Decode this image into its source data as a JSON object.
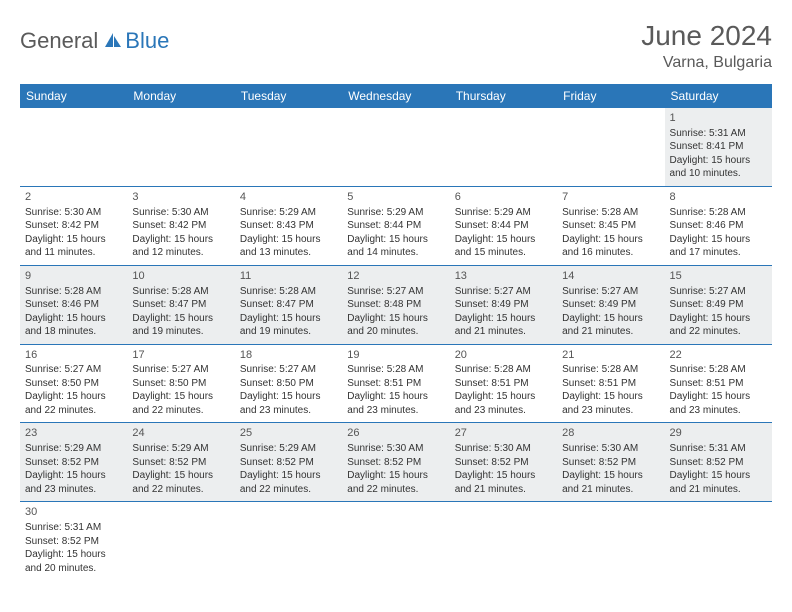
{
  "brand": {
    "part1": "General",
    "part2": "Blue"
  },
  "title": "June 2024",
  "location": "Varna, Bulgaria",
  "colors": {
    "header_bg": "#2a76b8",
    "header_text": "#ffffff",
    "row_alt_bg": "#eceeef",
    "divider": "#2a76b8",
    "title_color": "#5a5a5a"
  },
  "dayHeaders": [
    "Sunday",
    "Monday",
    "Tuesday",
    "Wednesday",
    "Thursday",
    "Friday",
    "Saturday"
  ],
  "weeks": [
    [
      null,
      null,
      null,
      null,
      null,
      null,
      {
        "d": "1",
        "sr": "5:31 AM",
        "ss": "8:41 PM",
        "dl": "15 hours and 10 minutes."
      }
    ],
    [
      {
        "d": "2",
        "sr": "5:30 AM",
        "ss": "8:42 PM",
        "dl": "15 hours and 11 minutes."
      },
      {
        "d": "3",
        "sr": "5:30 AM",
        "ss": "8:42 PM",
        "dl": "15 hours and 12 minutes."
      },
      {
        "d": "4",
        "sr": "5:29 AM",
        "ss": "8:43 PM",
        "dl": "15 hours and 13 minutes."
      },
      {
        "d": "5",
        "sr": "5:29 AM",
        "ss": "8:44 PM",
        "dl": "15 hours and 14 minutes."
      },
      {
        "d": "6",
        "sr": "5:29 AM",
        "ss": "8:44 PM",
        "dl": "15 hours and 15 minutes."
      },
      {
        "d": "7",
        "sr": "5:28 AM",
        "ss": "8:45 PM",
        "dl": "15 hours and 16 minutes."
      },
      {
        "d": "8",
        "sr": "5:28 AM",
        "ss": "8:46 PM",
        "dl": "15 hours and 17 minutes."
      }
    ],
    [
      {
        "d": "9",
        "sr": "5:28 AM",
        "ss": "8:46 PM",
        "dl": "15 hours and 18 minutes."
      },
      {
        "d": "10",
        "sr": "5:28 AM",
        "ss": "8:47 PM",
        "dl": "15 hours and 19 minutes."
      },
      {
        "d": "11",
        "sr": "5:28 AM",
        "ss": "8:47 PM",
        "dl": "15 hours and 19 minutes."
      },
      {
        "d": "12",
        "sr": "5:27 AM",
        "ss": "8:48 PM",
        "dl": "15 hours and 20 minutes."
      },
      {
        "d": "13",
        "sr": "5:27 AM",
        "ss": "8:49 PM",
        "dl": "15 hours and 21 minutes."
      },
      {
        "d": "14",
        "sr": "5:27 AM",
        "ss": "8:49 PM",
        "dl": "15 hours and 21 minutes."
      },
      {
        "d": "15",
        "sr": "5:27 AM",
        "ss": "8:49 PM",
        "dl": "15 hours and 22 minutes."
      }
    ],
    [
      {
        "d": "16",
        "sr": "5:27 AM",
        "ss": "8:50 PM",
        "dl": "15 hours and 22 minutes."
      },
      {
        "d": "17",
        "sr": "5:27 AM",
        "ss": "8:50 PM",
        "dl": "15 hours and 22 minutes."
      },
      {
        "d": "18",
        "sr": "5:27 AM",
        "ss": "8:50 PM",
        "dl": "15 hours and 23 minutes."
      },
      {
        "d": "19",
        "sr": "5:28 AM",
        "ss": "8:51 PM",
        "dl": "15 hours and 23 minutes."
      },
      {
        "d": "20",
        "sr": "5:28 AM",
        "ss": "8:51 PM",
        "dl": "15 hours and 23 minutes."
      },
      {
        "d": "21",
        "sr": "5:28 AM",
        "ss": "8:51 PM",
        "dl": "15 hours and 23 minutes."
      },
      {
        "d": "22",
        "sr": "5:28 AM",
        "ss": "8:51 PM",
        "dl": "15 hours and 23 minutes."
      }
    ],
    [
      {
        "d": "23",
        "sr": "5:29 AM",
        "ss": "8:52 PM",
        "dl": "15 hours and 23 minutes."
      },
      {
        "d": "24",
        "sr": "5:29 AM",
        "ss": "8:52 PM",
        "dl": "15 hours and 22 minutes."
      },
      {
        "d": "25",
        "sr": "5:29 AM",
        "ss": "8:52 PM",
        "dl": "15 hours and 22 minutes."
      },
      {
        "d": "26",
        "sr": "5:30 AM",
        "ss": "8:52 PM",
        "dl": "15 hours and 22 minutes."
      },
      {
        "d": "27",
        "sr": "5:30 AM",
        "ss": "8:52 PM",
        "dl": "15 hours and 21 minutes."
      },
      {
        "d": "28",
        "sr": "5:30 AM",
        "ss": "8:52 PM",
        "dl": "15 hours and 21 minutes."
      },
      {
        "d": "29",
        "sr": "5:31 AM",
        "ss": "8:52 PM",
        "dl": "15 hours and 21 minutes."
      }
    ],
    [
      {
        "d": "30",
        "sr": "5:31 AM",
        "ss": "8:52 PM",
        "dl": "15 hours and 20 minutes."
      },
      null,
      null,
      null,
      null,
      null,
      null
    ]
  ],
  "labels": {
    "sunrise": "Sunrise:",
    "sunset": "Sunset:",
    "daylight": "Daylight:"
  }
}
